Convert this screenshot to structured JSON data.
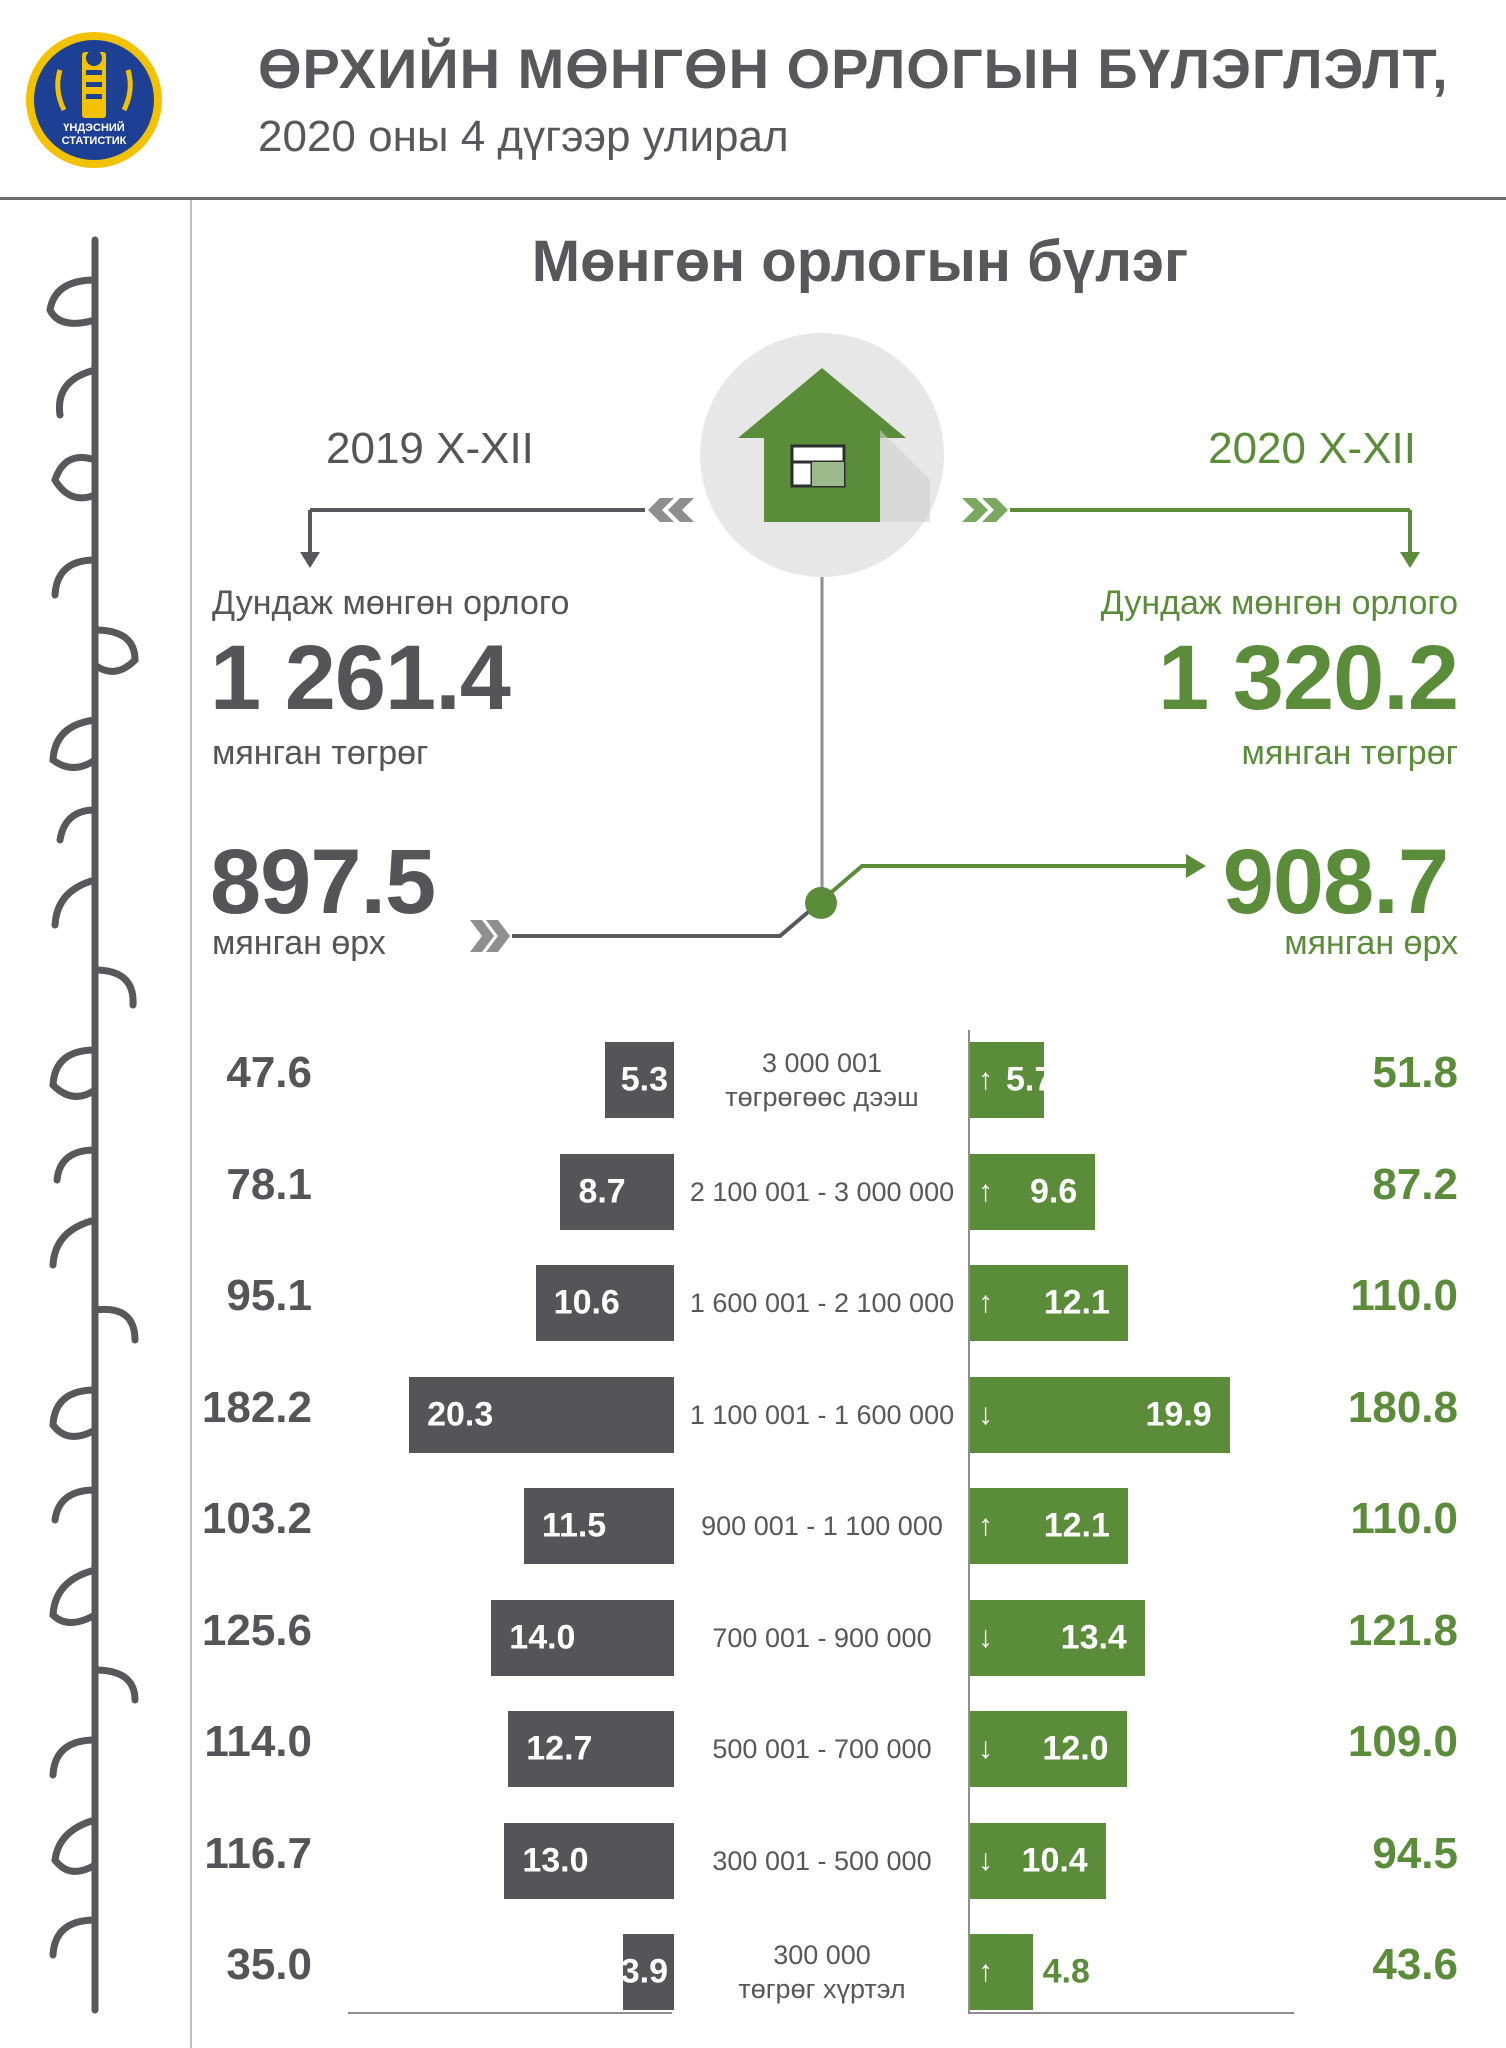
{
  "header": {
    "title": "ӨРХИЙН МӨНГӨН ОРЛОГЫН БҮЛЭГЛЭЛТ,",
    "subtitle": "2020 оны 4 дүгээр улирал",
    "logo_text": "ҮНДЭСНИЙ СТАТИСТИК"
  },
  "section_title": "Мөнгөн орлогын бүлэг",
  "left": {
    "period": "2019 X-XII",
    "avg_label": "Дундаж мөнгөн орлого",
    "avg_value": "1 261.4",
    "avg_unit": "мянган төгрөг",
    "hh_value": "897.5",
    "hh_unit": "мянган өрх"
  },
  "right": {
    "period": "2020 X-XII",
    "avg_label": "Дундаж мөнгөн орлого",
    "avg_value": "1 320.2",
    "avg_unit": "мянган төгрөг",
    "hh_value": "908.7",
    "hh_unit": "мянган өрх"
  },
  "colors": {
    "gray": "#555558",
    "green": "#5a8c3a",
    "circle": "#e7e7e7"
  },
  "icons": [
    "house-icon",
    "chevron-left-icon",
    "chevron-right-icon",
    "down-arrow-icon",
    "right-arrow-icon",
    "up-arrow-icon",
    "logo-emblem-icon"
  ],
  "chart_data": {
    "type": "bar",
    "orientation": "horizontal-butterfly",
    "unit_bars": "%",
    "categories": [
      "3 000 001\nтөгрөгөөс дээш",
      "2 100 001 - 3 000 000",
      "1 600 001 - 2 100 000",
      "1 100 001 - 1 600 000",
      "900 001 - 1 100 000",
      "700 001 - 900 000",
      "500 001 - 700 000",
      "300 001 - 500 000",
      "300 000\nтөгрөг хүртэл"
    ],
    "series": [
      {
        "name": "2019 X-XII",
        "values": [
          5.3,
          8.7,
          10.6,
          20.3,
          11.5,
          14.0,
          12.7,
          13.0,
          3.9
        ],
        "labels": [
          "5.3",
          "8.7",
          "10.6",
          "20.3",
          "11.5",
          "14.0",
          "12.7",
          "13.0",
          "3.9"
        ],
        "households": [
          "47.6",
          "78.1",
          "95.1",
          "182.2",
          "103.2",
          "125.6",
          "114.0",
          "116.7",
          "35.0"
        ]
      },
      {
        "name": "2020 X-XII",
        "values": [
          5.7,
          9.6,
          12.1,
          19.9,
          12.1,
          13.4,
          12.0,
          10.4,
          4.8
        ],
        "labels": [
          "5.7",
          "9.6",
          "12.1",
          "19.9",
          "12.1",
          "13.4",
          "12.0",
          "10.4",
          "4.8"
        ],
        "households": [
          "51.8",
          "87.2",
          "110.0",
          "180.8",
          "110.0",
          "121.8",
          "109.0",
          "94.5",
          "43.6"
        ],
        "change": [
          "up",
          "up",
          "up",
          "down",
          "up",
          "down",
          "down",
          "down",
          "up"
        ]
      }
    ],
    "xlim": [
      0,
      21
    ]
  }
}
